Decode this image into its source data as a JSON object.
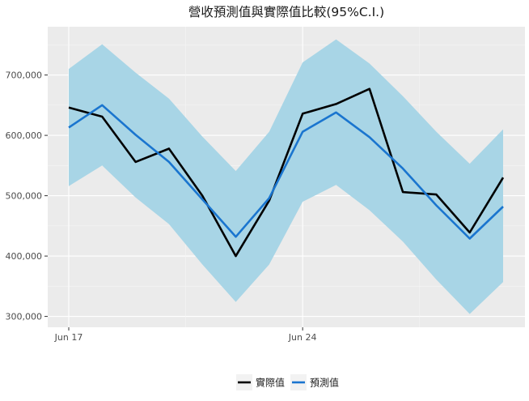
{
  "chart_data": {
    "type": "line",
    "title": "營收預測值與實際值比較(95%C.I.)",
    "xlabel": "",
    "ylabel": "",
    "x": [
      "2024-06-17",
      "2024-06-18",
      "2024-06-19",
      "2024-06-20",
      "2024-06-21",
      "2024-06-22",
      "2024-06-23",
      "2024-06-24",
      "2024-06-25",
      "2024-06-26",
      "2024-06-27",
      "2024-06-28",
      "2024-06-29",
      "2024-06-30"
    ],
    "x_ticks": [
      {
        "date": "2024-06-17",
        "label": "Jun 17"
      },
      {
        "date": "2024-06-24",
        "label": "Jun 24"
      }
    ],
    "ylim": [
      282000,
      780000
    ],
    "y_ticks": [
      300000,
      400000,
      500000,
      600000,
      700000
    ],
    "y_tick_labels": [
      "300,000",
      "400,000",
      "500,000",
      "600,000",
      "700,000"
    ],
    "series": [
      {
        "name": "實際值",
        "color": "#000000",
        "values": [
          646000,
          631000,
          556000,
          578000,
          500000,
          400000,
          492000,
          636000,
          652000,
          677000,
          506000,
          502000,
          439000,
          530000
        ]
      },
      {
        "name": "預測值",
        "color": "#1a75cf",
        "values": [
          613000,
          650000,
          601000,
          556000,
          494000,
          432000,
          496000,
          606000,
          638000,
          597000,
          545000,
          484000,
          429000,
          482000
        ]
      }
    ],
    "band": {
      "color": "#a8d5e6",
      "lower": [
        516000,
        550000,
        497000,
        453000,
        386000,
        324000,
        386000,
        490000,
        518000,
        476000,
        424000,
        361000,
        304000,
        357000
      ],
      "upper": [
        710000,
        751000,
        704000,
        661000,
        598000,
        541000,
        606000,
        721000,
        759000,
        719000,
        665000,
        606000,
        553000,
        610000
      ]
    },
    "grid": true,
    "legend": {
      "position": "bottom",
      "entries": [
        "實際值",
        "預測值"
      ]
    }
  }
}
